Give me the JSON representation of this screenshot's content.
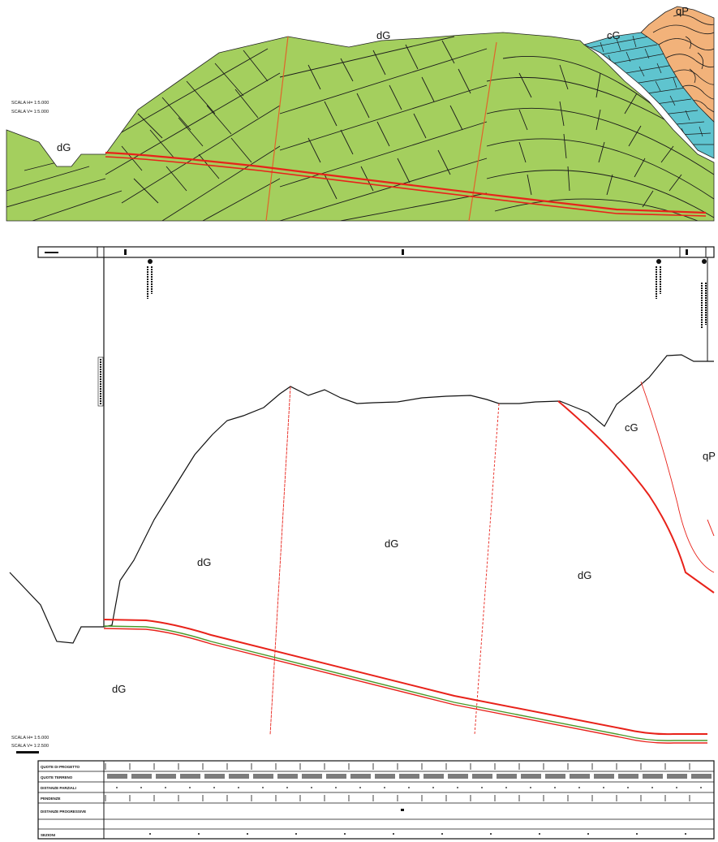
{
  "top_section": {
    "scale_h": "SCALA H= 1:5.000",
    "scale_v": "SCALA V= 1:5.000",
    "units": {
      "dg_left": "dG",
      "dg_top": "dG",
      "cg": "cG",
      "qp": "qP"
    }
  },
  "bottom_section": {
    "scale_h": "SCALA H= 1:5.000",
    "scale_v": "SCALA V= 1:2.500",
    "units": {
      "dg_left_lower": "dG",
      "dg_left": "dG",
      "dg_mid": "dG",
      "dg_right": "dG",
      "cg": "cG",
      "qp": "qP"
    }
  },
  "table": {
    "rows": [
      "QUOTE DI PROGETTO",
      "QUOTE TERRENO",
      "DISTANZE PARZIALI",
      "PENDENZE",
      "DISTANZE PROGRESSIVE",
      "SEZIONI"
    ]
  },
  "legend": {
    "colors": {
      "dg": "#a4cf5e",
      "cg": "#5fc4cf",
      "qp": "#f2b27a",
      "tunnel": "#e8221a",
      "fault": "#e0642a"
    }
  }
}
